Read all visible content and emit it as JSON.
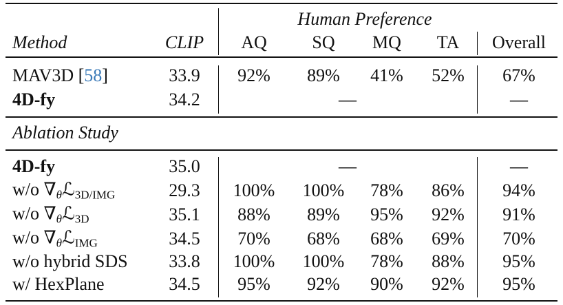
{
  "header": {
    "group": "Human Preference",
    "columns": [
      "Method",
      "CLIP",
      "AQ",
      "SQ",
      "MQ",
      "TA",
      "Overall"
    ]
  },
  "rows": [
    {
      "method": {
        "name": "MAV3D",
        "cite_open": "[",
        "cite": "58",
        "cite_close": "]"
      },
      "clip": "33.9",
      "prefs": [
        "92%",
        "89%",
        "41%",
        "52%"
      ],
      "overall": "67%"
    },
    {
      "method": {
        "name": "4D-fy",
        "bold": true
      },
      "clip": "34.2",
      "prefs_span": "—",
      "overall": "—"
    }
  ],
  "section": "Ablation Study",
  "ablation_rows": [
    {
      "method": {
        "name": "4D-fy",
        "bold": true
      },
      "clip": "35.0",
      "prefs_span": "—",
      "overall": "—"
    },
    {
      "method": {
        "text": "w/o ∇",
        "theta": "θ",
        "loss": "ℒ",
        "loss_sub": "3D/IMG"
      },
      "clip": "29.3",
      "prefs": [
        "100%",
        "100%",
        "78%",
        "86%"
      ],
      "overall": "94%"
    },
    {
      "method": {
        "text": "w/o ∇",
        "theta": "θ",
        "loss": "ℒ",
        "loss_sub": "3D"
      },
      "clip": "35.1",
      "prefs": [
        "88%",
        "89%",
        "95%",
        "92%"
      ],
      "overall": "91%"
    },
    {
      "method": {
        "text": "w/o ∇",
        "theta": "θ",
        "loss": "ℒ",
        "loss_sub": "IMG"
      },
      "clip": "34.5",
      "prefs": [
        "70%",
        "68%",
        "68%",
        "69%"
      ],
      "overall": "70%"
    },
    {
      "method": {
        "name": "w/o hybrid SDS"
      },
      "clip": "33.8",
      "prefs": [
        "100%",
        "100%",
        "78%",
        "88%"
      ],
      "overall": "95%"
    },
    {
      "method": {
        "name": "w/ HexPlane"
      },
      "clip": "34.5",
      "prefs": [
        "95%",
        "92%",
        "90%",
        "92%"
      ],
      "overall": "95%"
    }
  ]
}
